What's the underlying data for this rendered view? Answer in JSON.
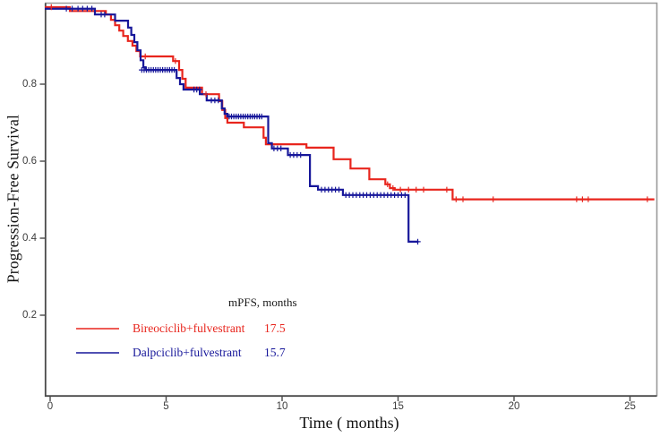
{
  "figure": {
    "background": "#ffffff",
    "y_axis": {
      "label": "Progression-Free Survival",
      "ticks": [
        0.2,
        0.4,
        0.6,
        0.8
      ],
      "tick_labels": [
        "0.2",
        "0.4",
        "0.6",
        "0.8"
      ]
    },
    "x_axis": {
      "label": "Time ( months)",
      "ticks": [
        0,
        5,
        10,
        15,
        20,
        25
      ],
      "tick_labels": [
        "0",
        "5",
        "10",
        "15",
        "20",
        "25"
      ]
    },
    "legend": {
      "header": "mPFS, months",
      "entries": [
        {
          "label": "Bireociclib+fulvestrant",
          "value": "17.5",
          "color": "#e8251d"
        },
        {
          "label": "Dalpciclib+fulvestrant",
          "value": "15.7",
          "color": "#17179a"
        }
      ]
    },
    "colors": {
      "border_light": "#9a9a9a",
      "border_dark": "#4a4a4a",
      "tick": "#4a4a4a"
    }
  },
  "chart_data": {
    "type": "line",
    "subtype": "kaplan-meier-step",
    "title": "",
    "xlabel": "Time ( months)",
    "ylabel": "Progression-Free Survival",
    "xlim": [
      0,
      26
    ],
    "ylim": [
      0,
      1
    ],
    "grid": false,
    "legend_position": "lower-left-inside",
    "series": [
      {
        "name": "Bireociclib+fulvestrant",
        "color": "#e8251d",
        "median_pfs_months": 17.5,
        "end_time": 26.05,
        "steps": [
          [
            0,
            1.0
          ],
          [
            0.85,
            0.99
          ],
          [
            2.4,
            0.981
          ],
          [
            2.62,
            0.967
          ],
          [
            2.8,
            0.953
          ],
          [
            2.98,
            0.939
          ],
          [
            3.15,
            0.925
          ],
          [
            3.35,
            0.912
          ],
          [
            3.55,
            0.9
          ],
          [
            3.72,
            0.886
          ],
          [
            3.88,
            0.872
          ],
          [
            5.3,
            0.86
          ],
          [
            5.56,
            0.837
          ],
          [
            5.7,
            0.814
          ],
          [
            5.84,
            0.791
          ],
          [
            6.55,
            0.774
          ],
          [
            7.28,
            0.756
          ],
          [
            7.42,
            0.733
          ],
          [
            7.55,
            0.712
          ],
          [
            7.64,
            0.7
          ],
          [
            8.35,
            0.688
          ],
          [
            9.2,
            0.661
          ],
          [
            9.3,
            0.644
          ],
          [
            11.05,
            0.635
          ],
          [
            12.22,
            0.605
          ],
          [
            12.95,
            0.581
          ],
          [
            13.76,
            0.553
          ],
          [
            14.45,
            0.54
          ],
          [
            14.65,
            0.53
          ],
          [
            14.85,
            0.526
          ],
          [
            17.35,
            0.501
          ]
        ],
        "censor_marks": [
          [
            0.05,
            1.0
          ],
          [
            4.1,
            0.872
          ],
          [
            5.4,
            0.86
          ],
          [
            6.72,
            0.774
          ],
          [
            14.55,
            0.54
          ],
          [
            14.78,
            0.53
          ],
          [
            15.1,
            0.526
          ],
          [
            15.45,
            0.526
          ],
          [
            15.78,
            0.526
          ],
          [
            16.1,
            0.526
          ],
          [
            17.1,
            0.526
          ],
          [
            17.5,
            0.501
          ],
          [
            17.8,
            0.501
          ],
          [
            19.1,
            0.501
          ],
          [
            22.7,
            0.501
          ],
          [
            22.95,
            0.501
          ],
          [
            23.2,
            0.501
          ],
          [
            25.75,
            0.501
          ]
        ]
      },
      {
        "name": "Dalpciclib+fulvestrant",
        "color": "#17179a",
        "median_pfs_months": 15.7,
        "end_time": 15.88,
        "steps": [
          [
            0,
            0.996
          ],
          [
            1.93,
            0.981
          ],
          [
            2.8,
            0.965
          ],
          [
            3.36,
            0.947
          ],
          [
            3.5,
            0.928
          ],
          [
            3.63,
            0.909
          ],
          [
            3.76,
            0.888
          ],
          [
            3.9,
            0.862
          ],
          [
            4.02,
            0.844
          ],
          [
            4.12,
            0.837
          ],
          [
            5.45,
            0.816
          ],
          [
            5.6,
            0.8
          ],
          [
            5.75,
            0.786
          ],
          [
            6.45,
            0.774
          ],
          [
            6.75,
            0.758
          ],
          [
            7.4,
            0.737
          ],
          [
            7.52,
            0.723
          ],
          [
            7.64,
            0.716
          ],
          [
            9.4,
            0.647
          ],
          [
            9.56,
            0.633
          ],
          [
            10.25,
            0.616
          ],
          [
            11.2,
            0.535
          ],
          [
            11.55,
            0.526
          ],
          [
            12.62,
            0.512
          ],
          [
            15.45,
            0.391
          ]
        ],
        "censor_marks": [
          [
            0.7,
            0.996
          ],
          [
            0.95,
            0.996
          ],
          [
            1.2,
            0.996
          ],
          [
            1.4,
            0.996
          ],
          [
            1.6,
            0.996
          ],
          [
            1.8,
            0.996
          ],
          [
            2.2,
            0.981
          ],
          [
            2.35,
            0.981
          ],
          [
            3.95,
            0.837
          ],
          [
            4.05,
            0.837
          ],
          [
            4.15,
            0.837
          ],
          [
            4.25,
            0.837
          ],
          [
            4.35,
            0.837
          ],
          [
            4.45,
            0.837
          ],
          [
            4.55,
            0.837
          ],
          [
            4.65,
            0.837
          ],
          [
            4.75,
            0.837
          ],
          [
            4.85,
            0.837
          ],
          [
            4.95,
            0.837
          ],
          [
            5.05,
            0.837
          ],
          [
            5.15,
            0.837
          ],
          [
            5.25,
            0.837
          ],
          [
            5.35,
            0.837
          ],
          [
            6.2,
            0.786
          ],
          [
            6.32,
            0.786
          ],
          [
            6.44,
            0.786
          ],
          [
            6.95,
            0.758
          ],
          [
            7.1,
            0.758
          ],
          [
            7.25,
            0.758
          ],
          [
            7.72,
            0.716
          ],
          [
            7.82,
            0.716
          ],
          [
            7.92,
            0.716
          ],
          [
            8.02,
            0.716
          ],
          [
            8.12,
            0.716
          ],
          [
            8.22,
            0.716
          ],
          [
            8.32,
            0.716
          ],
          [
            8.42,
            0.716
          ],
          [
            8.52,
            0.716
          ],
          [
            8.62,
            0.716
          ],
          [
            8.72,
            0.716
          ],
          [
            8.82,
            0.716
          ],
          [
            8.92,
            0.716
          ],
          [
            9.02,
            0.716
          ],
          [
            9.12,
            0.716
          ],
          [
            9.65,
            0.633
          ],
          [
            9.8,
            0.633
          ],
          [
            9.95,
            0.633
          ],
          [
            10.35,
            0.616
          ],
          [
            10.5,
            0.616
          ],
          [
            10.65,
            0.616
          ],
          [
            10.8,
            0.616
          ],
          [
            11.7,
            0.526
          ],
          [
            11.85,
            0.526
          ],
          [
            12.0,
            0.526
          ],
          [
            12.15,
            0.526
          ],
          [
            12.3,
            0.526
          ],
          [
            12.45,
            0.526
          ],
          [
            12.75,
            0.512
          ],
          [
            12.9,
            0.512
          ],
          [
            13.05,
            0.512
          ],
          [
            13.2,
            0.512
          ],
          [
            13.35,
            0.512
          ],
          [
            13.5,
            0.512
          ],
          [
            13.65,
            0.512
          ],
          [
            13.8,
            0.512
          ],
          [
            13.95,
            0.512
          ],
          [
            14.1,
            0.512
          ],
          [
            14.25,
            0.512
          ],
          [
            14.4,
            0.512
          ],
          [
            14.55,
            0.512
          ],
          [
            14.7,
            0.512
          ],
          [
            14.85,
            0.512
          ],
          [
            15.0,
            0.512
          ],
          [
            15.15,
            0.512
          ],
          [
            15.3,
            0.512
          ],
          [
            15.85,
            0.391
          ]
        ]
      }
    ]
  }
}
